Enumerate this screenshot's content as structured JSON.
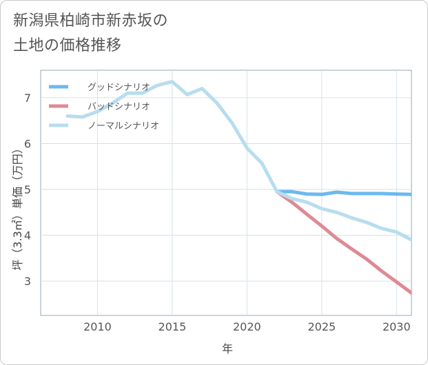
{
  "title": {
    "line1": "新潟県柏崎市新赤坂の",
    "line2": "土地の価格推移"
  },
  "chart_data": {
    "type": "line",
    "title": "新潟県柏崎市新赤坂の土地の価格推移",
    "xlabel": "年",
    "ylabel": "坪（3.3㎡）単価（万円）",
    "xlim": [
      2006.2,
      2031.0
    ],
    "ylim": [
      2.25,
      7.6
    ],
    "xticks": [
      2010,
      2015,
      2020,
      2025,
      2030
    ],
    "yticks": [
      3,
      4,
      5,
      6,
      7
    ],
    "grid": true,
    "legend_position": "top-left",
    "series": [
      {
        "name": "グッドシナリオ",
        "color": "#6cb9ef",
        "x": [
          2022,
          2023,
          2024,
          2025,
          2026,
          2027,
          2028,
          2029,
          2030,
          2031
        ],
        "y": [
          4.95,
          4.95,
          4.9,
          4.89,
          4.94,
          4.91,
          4.91,
          4.91,
          4.9,
          4.89
        ]
      },
      {
        "name": "バッドシナリオ",
        "color": "#de8a94",
        "x": [
          2022,
          2023,
          2024,
          2025,
          2026,
          2027,
          2028,
          2029,
          2030,
          2031
        ],
        "y": [
          4.95,
          4.72,
          4.46,
          4.2,
          3.93,
          3.7,
          3.48,
          3.22,
          2.98,
          2.74
        ]
      },
      {
        "name": "ノーマルシナリオ",
        "color": "#b7ddee",
        "x": [
          2008,
          2009,
          2010,
          2011,
          2012,
          2013,
          2014,
          2015,
          2016,
          2017,
          2018,
          2019,
          2020,
          2021,
          2022,
          2023,
          2024,
          2025,
          2026,
          2027,
          2028,
          2029,
          2030,
          2031
        ],
        "y": [
          6.6,
          6.58,
          6.7,
          6.88,
          7.1,
          7.1,
          7.27,
          7.35,
          7.07,
          7.2,
          6.88,
          6.45,
          5.9,
          5.57,
          4.95,
          4.8,
          4.72,
          4.58,
          4.5,
          4.38,
          4.28,
          4.15,
          4.07,
          3.9
        ]
      }
    ]
  }
}
